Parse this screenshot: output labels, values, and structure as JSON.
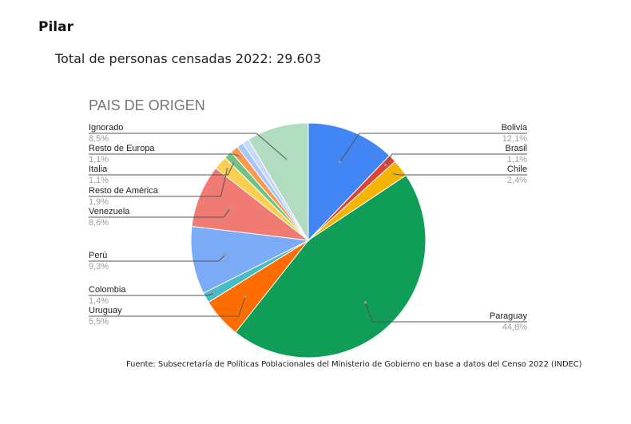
{
  "heading": "Pilar",
  "subheading": "Total de personas censadas 2022: 29.603",
  "footnote": "Fuente: Subsecretaría de Políticas Poblacionales del Ministerio de Gobierno en base a datos del Censo 2022 (INDEC)",
  "chart_data": {
    "type": "pie",
    "title": "PAIS DE ORIGEN",
    "legend": "labels-beside-slices",
    "slices": [
      {
        "label": "Bolivia",
        "value": 12.1,
        "display": "12,1%",
        "color": "#4285F4",
        "side": "right"
      },
      {
        "label": "Brasil",
        "value": 1.1,
        "display": "1,1%",
        "color": "#DB4437",
        "side": "right"
      },
      {
        "label": "Chile",
        "value": 2.4,
        "display": "2,4%",
        "color": "#F4B400",
        "side": "right"
      },
      {
        "label": "Paraguay",
        "value": 44.8,
        "display": "44,8%",
        "color": "#0F9D58",
        "side": "right"
      },
      {
        "label": "Uruguay",
        "value": 5.5,
        "display": "5,5%",
        "color": "#FF6D00",
        "side": "left"
      },
      {
        "label": "Colombia",
        "value": 1.4,
        "display": "1,4%",
        "color": "#46BDC6",
        "side": "left"
      },
      {
        "label": "Perú",
        "value": 9.3,
        "display": "9,3%",
        "color": "#7BAAF7",
        "side": "left"
      },
      {
        "label": "Venezuela",
        "value": 8.6,
        "display": "8,6%",
        "color": "#F07B72",
        "side": "left"
      },
      {
        "label": "Resto de América",
        "value": 1.9,
        "display": "1,9%",
        "color": "#FCD04F",
        "side": "left"
      },
      {
        "label": "Italia",
        "value": 1.1,
        "display": "1,1%",
        "color": "#71C287",
        "side": "left"
      },
      {
        "label": "Resto de Europa",
        "value": 1.1,
        "display": "1,1%",
        "color": "#FF994D",
        "side": "left"
      },
      {
        "label": "",
        "value": 0.9,
        "display": "",
        "color": "#A7C7FA",
        "side": "none"
      },
      {
        "label": "",
        "value": 0.9,
        "display": "",
        "color": "#C6D9F9",
        "side": "none"
      },
      {
        "label": "Ignorado",
        "value": 8.5,
        "display": "8,5%",
        "color": "#B1DCC0",
        "side": "left"
      }
    ]
  }
}
